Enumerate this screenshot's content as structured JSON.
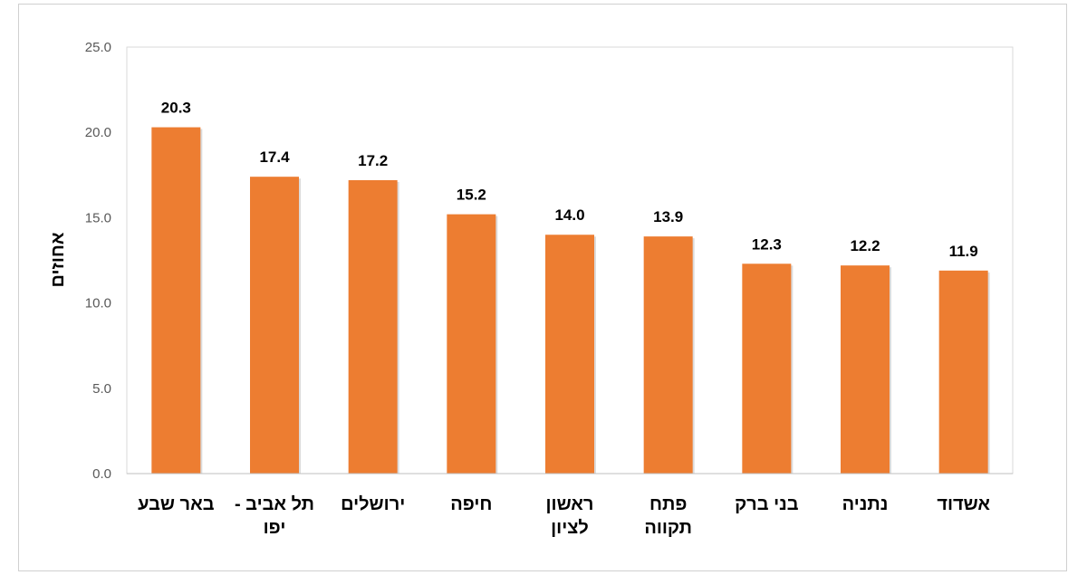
{
  "chart_data": {
    "type": "bar",
    "categories": [
      "באר שבע",
      "תל אביב - יפו",
      "ירושלים",
      "חיפה",
      "ראשון לציון",
      "פתח תקווה",
      "בני ברק",
      "נתניה",
      "אשדוד"
    ],
    "category_lines": [
      [
        "באר שבע"
      ],
      [
        "תל אביב -",
        "יפו"
      ],
      [
        "ירושלים"
      ],
      [
        "חיפה"
      ],
      [
        "ראשון",
        "לציון"
      ],
      [
        "פתח",
        "תקווה"
      ],
      [
        "בני ברק"
      ],
      [
        "נתניה"
      ],
      [
        "אשדוד"
      ]
    ],
    "values": [
      20.3,
      17.4,
      17.2,
      15.2,
      14.0,
      13.9,
      12.3,
      12.2,
      11.9
    ],
    "value_labels": [
      "20.3",
      "17.4",
      "17.2",
      "15.2",
      "14.0",
      "13.9",
      "12.3",
      "12.2",
      "11.9"
    ],
    "title": "",
    "xlabel": "",
    "ylabel": "אחוזים",
    "ylim": [
      0,
      25
    ],
    "yticks": [
      "0.0",
      "5.0",
      "10.0",
      "15.0",
      "20.0",
      "25.0"
    ],
    "bar_color": "#ED7D31",
    "grid": false,
    "legend": "none"
  }
}
